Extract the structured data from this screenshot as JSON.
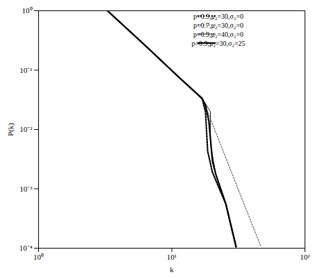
{
  "chart_data": {
    "type": "line",
    "xlabel": "k",
    "ylabel": "P(k)",
    "log": true,
    "grid": false,
    "legend": "upper right",
    "xlim": [
      1,
      100
    ],
    "ylim": [
      0.0001,
      1
    ],
    "xticks": [
      {
        "value": 1,
        "label": "10⁰"
      },
      {
        "value": 10,
        "label": "10¹"
      },
      {
        "value": 100,
        "label": "10²"
      }
    ],
    "yticks": [
      {
        "value": 0.0001,
        "label": "10⁻⁴"
      },
      {
        "value": 0.001,
        "label": "10⁻³"
      },
      {
        "value": 0.01,
        "label": "10⁻²"
      },
      {
        "value": 0.1,
        "label": "10⁻¹"
      },
      {
        "value": 1,
        "label": "10⁰"
      }
    ],
    "series": [
      {
        "name": "p=0.9,μ₂=30,σ₂=0",
        "color": "#000000",
        "line_style": "dotted",
        "x": [
          3.29,
          6.27,
          11.2,
          16.9,
          17.9,
          18.6,
          20.2,
          25.5,
          30.4
        ],
        "values": [
          1,
          0.264,
          0.0774,
          0.0333,
          0.02,
          0.0043,
          0.0019,
          0.00055,
          0.000105
        ]
      },
      {
        "name": "p=0.7,μ₂=30,σ₂=0",
        "color": "#000000",
        "line_style": "dotted",
        "x": [
          3.29,
          6.27,
          11.2,
          16.9,
          19.0,
          25.5,
          34.1,
          46.8
        ],
        "values": [
          1,
          0.264,
          0.0774,
          0.0333,
          0.0176,
          0.0033,
          0.00063,
          0.000105
        ]
      },
      {
        "name": "p=0.9,μ₂=40,σ₂=0",
        "color": "#000000",
        "line_style": "solid",
        "x": [
          3.29,
          6.27,
          11.2,
          16.9,
          19.5,
          19.5,
          21.4,
          25.5,
          30.4
        ],
        "values": [
          1,
          0.264,
          0.0774,
          0.0333,
          0.02,
          0.00585,
          0.00176,
          0.00055,
          0.000105
        ]
      },
      {
        "name": "p=0.9,μ₂=30,σ₂=25",
        "color": "#000000",
        "line_style": "solid",
        "x": [
          3.29,
          6.27,
          11.2,
          16.9,
          17.9,
          19.0,
          20.2,
          21.4,
          25.5,
          30.4
        ],
        "values": [
          1,
          0.264,
          0.0774,
          0.0333,
          0.0258,
          0.0136,
          0.00293,
          0.00176,
          0.00055,
          0.000105
        ]
      }
    ]
  }
}
